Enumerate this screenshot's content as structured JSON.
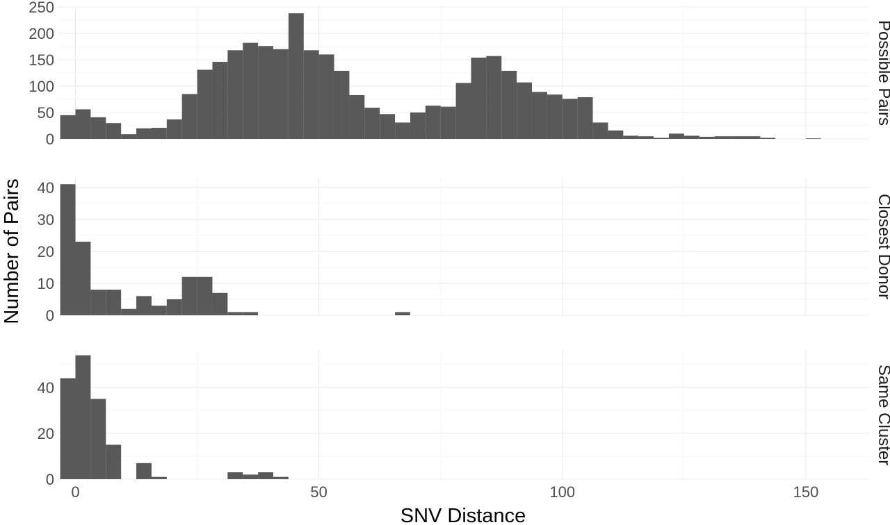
{
  "chart_data": {
    "type": "bar",
    "subtype": "faceted-histogram",
    "xlabel": "SNV Distance",
    "ylabel": "Number of Pairs",
    "xlim": [
      -3.5,
      163
    ],
    "x_ticks": [
      0,
      50,
      100,
      150
    ],
    "x_tick_labels": [
      "0",
      "50",
      "100",
      "150"
    ],
    "bin_width": 3.125,
    "first_bin_start": -3.125,
    "grid": true,
    "bar_color": "#595959",
    "panels": [
      {
        "name": "Possible Pairs",
        "ylim": [
          0,
          250
        ],
        "y_ticks": [
          0,
          50,
          100,
          150,
          200,
          250
        ],
        "y_tick_labels": [
          "0",
          "50",
          "100",
          "150",
          "200",
          "250"
        ],
        "counts": [
          45,
          56,
          41,
          30,
          9,
          20,
          21,
          37,
          85,
          131,
          146,
          168,
          182,
          176,
          170,
          238,
          168,
          160,
          129,
          83,
          59,
          47,
          31,
          50,
          63,
          61,
          106,
          154,
          157,
          129,
          107,
          89,
          84,
          76,
          79,
          31,
          16,
          6,
          5,
          2,
          10,
          6,
          4,
          5,
          5,
          5,
          2,
          0,
          0,
          1,
          0
        ]
      },
      {
        "name": "Closest Donor",
        "ylim": [
          0,
          43
        ],
        "y_ticks": [
          0,
          10,
          20,
          30,
          40
        ],
        "y_tick_labels": [
          "0",
          "10",
          "20",
          "30",
          "40"
        ],
        "counts": [
          41,
          23,
          8,
          8,
          2,
          6,
          3,
          5,
          12,
          12,
          7,
          1,
          1,
          0,
          0,
          0,
          0,
          0,
          0,
          0,
          0,
          0,
          1
        ]
      },
      {
        "name": "Same Cluster",
        "ylim": [
          0,
          56
        ],
        "y_ticks": [
          0,
          20,
          40
        ],
        "y_tick_labels": [
          "0",
          "20",
          "40"
        ],
        "counts": [
          44,
          54,
          35,
          15,
          0,
          7,
          1,
          0,
          0,
          0,
          0,
          3,
          2,
          3,
          1
        ]
      }
    ]
  }
}
